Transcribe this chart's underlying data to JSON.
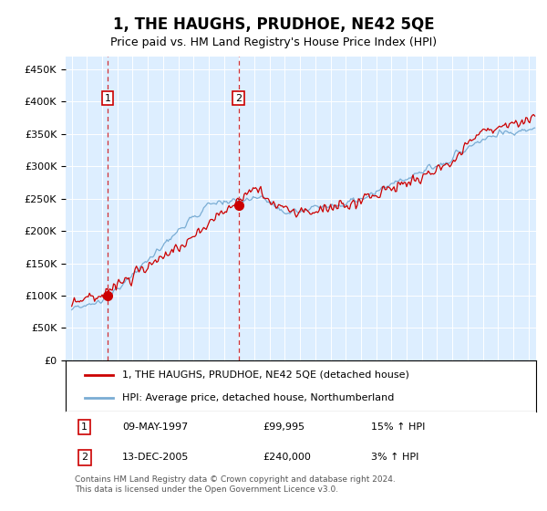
{
  "title": "1, THE HAUGHS, PRUDHOE, NE42 5QE",
  "subtitle": "Price paid vs. HM Land Registry's House Price Index (HPI)",
  "ylabel_ticks": [
    "£0",
    "£50K",
    "£100K",
    "£150K",
    "£200K",
    "£250K",
    "£300K",
    "£350K",
    "£400K",
    "£450K"
  ],
  "ytick_values": [
    0,
    50000,
    100000,
    150000,
    200000,
    250000,
    300000,
    350000,
    400000,
    450000
  ],
  "ylim": [
    0,
    470000
  ],
  "xlim_start": 1994.6,
  "xlim_end": 2025.5,
  "background_color": "#ddeeff",
  "sale1_x": 1997.36,
  "sale1_y": 99995,
  "sale2_x": 2005.95,
  "sale2_y": 240000,
  "sale1_label": "09-MAY-1997",
  "sale1_price": "£99,995",
  "sale1_hpi": "15% ↑ HPI",
  "sale2_label": "13-DEC-2005",
  "sale2_price": "£240,000",
  "sale2_hpi": "3% ↑ HPI",
  "legend_line1": "1, THE HAUGHS, PRUDHOE, NE42 5QE (detached house)",
  "legend_line2": "HPI: Average price, detached house, Northumberland",
  "footnote": "Contains HM Land Registry data © Crown copyright and database right 2024.\nThis data is licensed under the Open Government Licence v3.0.",
  "red_line_color": "#cc0000",
  "blue_line_color": "#7aadd4",
  "dashed_vline_color": "#cc0000",
  "grid_color": "#ffffff",
  "sale_marker_color": "#cc0000",
  "box_color": "#cc0000"
}
